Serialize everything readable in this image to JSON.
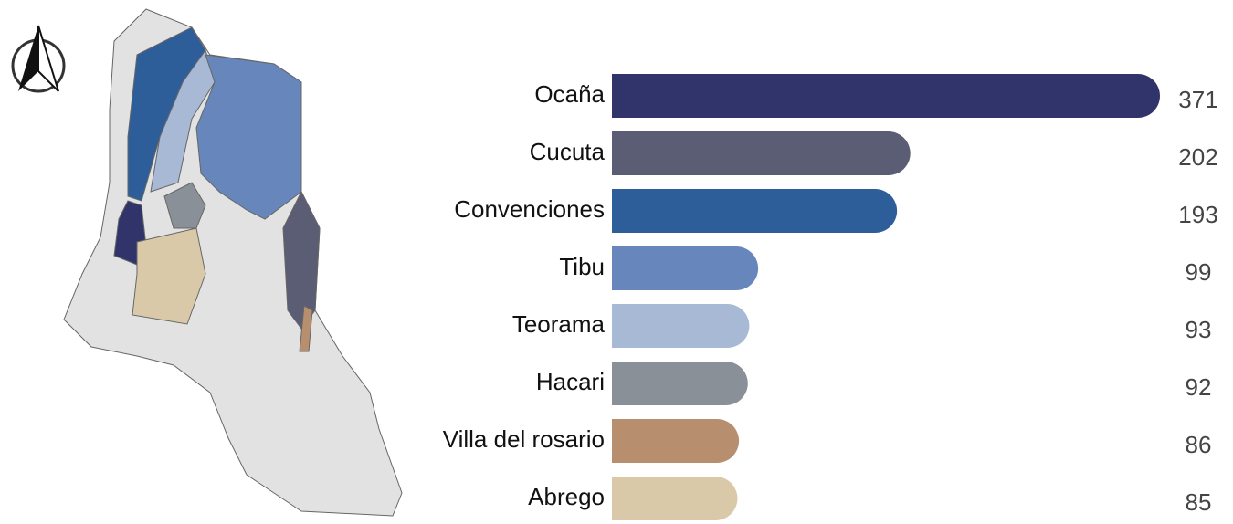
{
  "chart_data": {
    "type": "bar",
    "orientation": "horizontal",
    "categories": [
      "Ocaña",
      "Cucuta",
      "Convenciones",
      "Tibu",
      "Teorama",
      "Hacari",
      "Villa del rosario",
      "Abrego"
    ],
    "values": [
      371,
      202,
      193,
      99,
      93,
      92,
      86,
      85
    ],
    "colors": [
      "#31346b",
      "#5a5d73",
      "#2e5e9a",
      "#6786bb",
      "#a8b9d6",
      "#8a9098",
      "#b88f6e",
      "#d9c9a8"
    ]
  }
}
